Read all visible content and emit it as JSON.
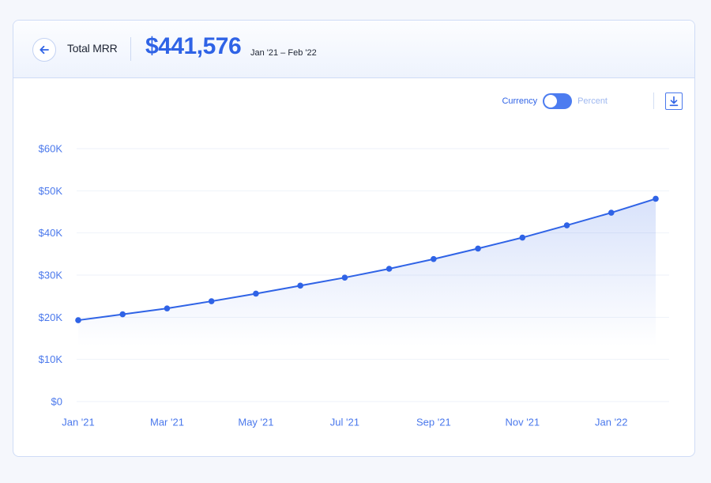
{
  "header": {
    "title": "Total MRR",
    "value": "$441,576",
    "date_range": "Jan '21 – Feb '22"
  },
  "toolbar": {
    "toggle_on_label": "Currency",
    "toggle_off_label": "Percent",
    "toggle_state": "Currency"
  },
  "icons": {
    "back": "arrow-left-icon",
    "download": "download-icon"
  },
  "colors": {
    "accent": "#2f63e6",
    "line": "#2f63e6",
    "tick_text": "#4a78ec",
    "card_border": "#cfdcf6"
  },
  "chart_data": {
    "type": "area",
    "title": "",
    "xlabel": "",
    "ylabel": "",
    "grid": true,
    "ylim": [
      0,
      60000
    ],
    "y_ticks": [
      {
        "value": 0,
        "label": "$0"
      },
      {
        "value": 10000,
        "label": "$10K"
      },
      {
        "value": 20000,
        "label": "$20K"
      },
      {
        "value": 30000,
        "label": "$30K"
      },
      {
        "value": 40000,
        "label": "$40K"
      },
      {
        "value": 50000,
        "label": "$50K"
      },
      {
        "value": 60000,
        "label": "$60K"
      }
    ],
    "x": [
      "Jan '21",
      "Feb '21",
      "Mar '21",
      "Apr '21",
      "May '21",
      "Jun '21",
      "Jul '21",
      "Aug '21",
      "Sep '21",
      "Oct '21",
      "Nov '21",
      "Dec '21",
      "Jan '22",
      "Feb '22"
    ],
    "x_tick_labels": [
      "Jan '21",
      "Mar '21",
      "May '21",
      "Jul '21",
      "Sep '21",
      "Nov '21",
      "Jan '22"
    ],
    "series": [
      {
        "values": [
          19300,
          20700,
          22100,
          23800,
          25600,
          27500,
          29400,
          31500,
          33800,
          36300,
          38900,
          41800,
          44800,
          48100
        ]
      }
    ]
  }
}
